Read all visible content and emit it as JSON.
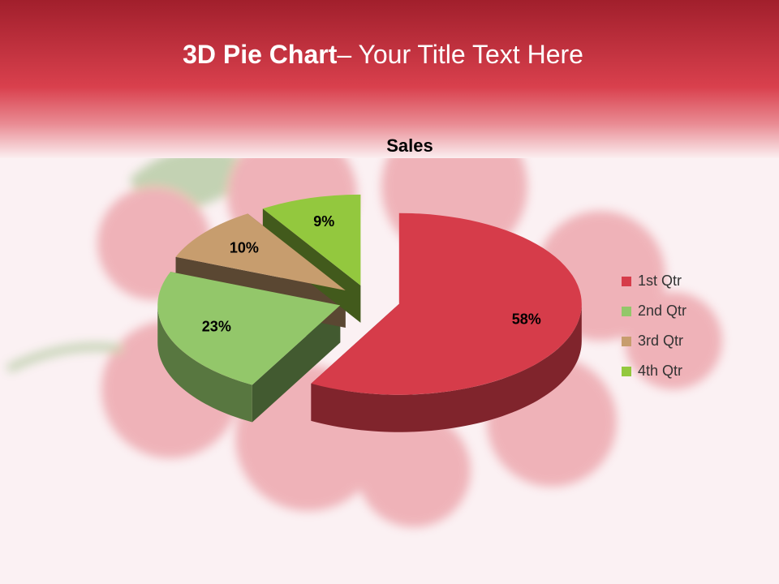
{
  "slide": {
    "title_bold": "3D Pie Chart",
    "title_rest": "– Your Title Text Here"
  },
  "chart_data": {
    "type": "pie",
    "title": "Sales",
    "categories": [
      "1st Qtr",
      "2nd Qtr",
      "3rd Qtr",
      "4th Qtr"
    ],
    "values": [
      58,
      23,
      10,
      9
    ],
    "value_labels": [
      "58%",
      "23%",
      "10%",
      "9%"
    ],
    "colors": [
      "#d63c4a",
      "#93c76a",
      "#c79d6e",
      "#93c83e"
    ],
    "legend": "right"
  }
}
